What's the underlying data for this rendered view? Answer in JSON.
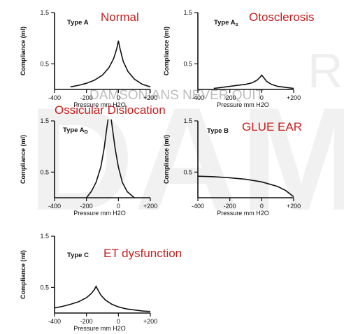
{
  "watermark": {
    "big": "DAMS",
    "line": "DAMSONIANS NEVER QUIT",
    "right": "RS"
  },
  "chart_data": [
    {
      "type": "line",
      "type_label": "Type A",
      "type_sub": "",
      "condition": "Normal",
      "xlabel": "Pressure mm H2O",
      "ylabel": "Compliance (ml)",
      "xlim": [
        -400,
        200
      ],
      "ylim": [
        0,
        1.5
      ],
      "xticks": [
        "-400",
        "-200",
        "0",
        "+200"
      ],
      "yticks": [
        "0.5",
        "1.5"
      ],
      "series": [
        {
          "x": [
            -300,
            -250,
            -200,
            -150,
            -100,
            -60,
            -30,
            -10,
            0,
            10,
            30,
            60,
            100,
            150,
            200
          ],
          "y": [
            0.05,
            0.08,
            0.12,
            0.18,
            0.28,
            0.42,
            0.6,
            0.8,
            0.95,
            0.8,
            0.55,
            0.35,
            0.2,
            0.1,
            0.05
          ]
        }
      ]
    },
    {
      "type": "line",
      "type_label": "Type A",
      "type_sub": "s",
      "condition": "Otosclerosis",
      "xlabel": "Pressure mm H2O",
      "ylabel": "Compliance (ml)",
      "xlim": [
        -400,
        200
      ],
      "ylim": [
        0,
        1.5
      ],
      "xticks": [
        "-400",
        "-200",
        "0",
        "+200"
      ],
      "yticks": [
        "0.5",
        "1.5"
      ],
      "series": [
        {
          "x": [
            -300,
            -250,
            -200,
            -150,
            -100,
            -60,
            -30,
            -10,
            0,
            10,
            30,
            60,
            100,
            150,
            200
          ],
          "y": [
            0.02,
            0.04,
            0.06,
            0.08,
            0.1,
            0.13,
            0.18,
            0.24,
            0.28,
            0.24,
            0.16,
            0.1,
            0.06,
            0.04,
            0.02
          ]
        }
      ]
    },
    {
      "type": "line",
      "type_label": "Type A",
      "type_sub": "D",
      "condition": "Ossicular Dislocation",
      "xlabel": "Pressure mm H2O",
      "ylabel": "Compliance (ml)",
      "xlim": [
        -400,
        200
      ],
      "ylim": [
        0,
        1.5
      ],
      "xticks": [
        "-400",
        "-200",
        "0",
        "+200"
      ],
      "yticks": [
        "0.5",
        "1.5"
      ],
      "series": [
        {
          "x": [
            -200,
            -170,
            -140,
            -110,
            -90,
            -75,
            -65
          ],
          "y": [
            0.0,
            0.12,
            0.3,
            0.6,
            0.95,
            1.3,
            1.6
          ]
        },
        {
          "x": [
            -45,
            -35,
            -20,
            0,
            25,
            55,
            100
          ],
          "y": [
            1.6,
            1.3,
            0.95,
            0.6,
            0.3,
            0.12,
            0.0
          ]
        }
      ]
    },
    {
      "type": "line",
      "type_label": "Type B",
      "type_sub": "",
      "condition": "GLUE EAR",
      "xlabel": "Pressure mm H2O",
      "ylabel": "Compliance (ml)",
      "xlim": [
        -400,
        200
      ],
      "ylim": [
        0,
        1.5
      ],
      "xticks": [
        "-400",
        "-200",
        "0",
        "+200"
      ],
      "yticks": [
        "0.5",
        "1.5"
      ],
      "series": [
        {
          "x": [
            -400,
            -300,
            -200,
            -100,
            0,
            100,
            150,
            200
          ],
          "y": [
            0.42,
            0.41,
            0.39,
            0.36,
            0.31,
            0.22,
            0.14,
            0.02
          ]
        }
      ]
    },
    {
      "type": "line",
      "type_label": "Type C",
      "type_sub": "",
      "condition": "ET dysfunction",
      "xlabel": "Pressure mm H2O",
      "ylabel": "Compliance (ml)",
      "xlim": [
        -400,
        200
      ],
      "ylim": [
        0,
        1.5
      ],
      "xticks": [
        "-400",
        "-200",
        "0",
        "+200"
      ],
      "yticks": [
        "0.5",
        "1.5"
      ],
      "series": [
        {
          "x": [
            -400,
            -350,
            -300,
            -250,
            -200,
            -170,
            -150,
            -140,
            -130,
            -110,
            -80,
            -40,
            0,
            50,
            100,
            150,
            200
          ],
          "y": [
            0.1,
            0.13,
            0.17,
            0.22,
            0.3,
            0.38,
            0.46,
            0.52,
            0.46,
            0.35,
            0.25,
            0.17,
            0.12,
            0.08,
            0.06,
            0.04,
            0.03
          ]
        }
      ]
    }
  ]
}
